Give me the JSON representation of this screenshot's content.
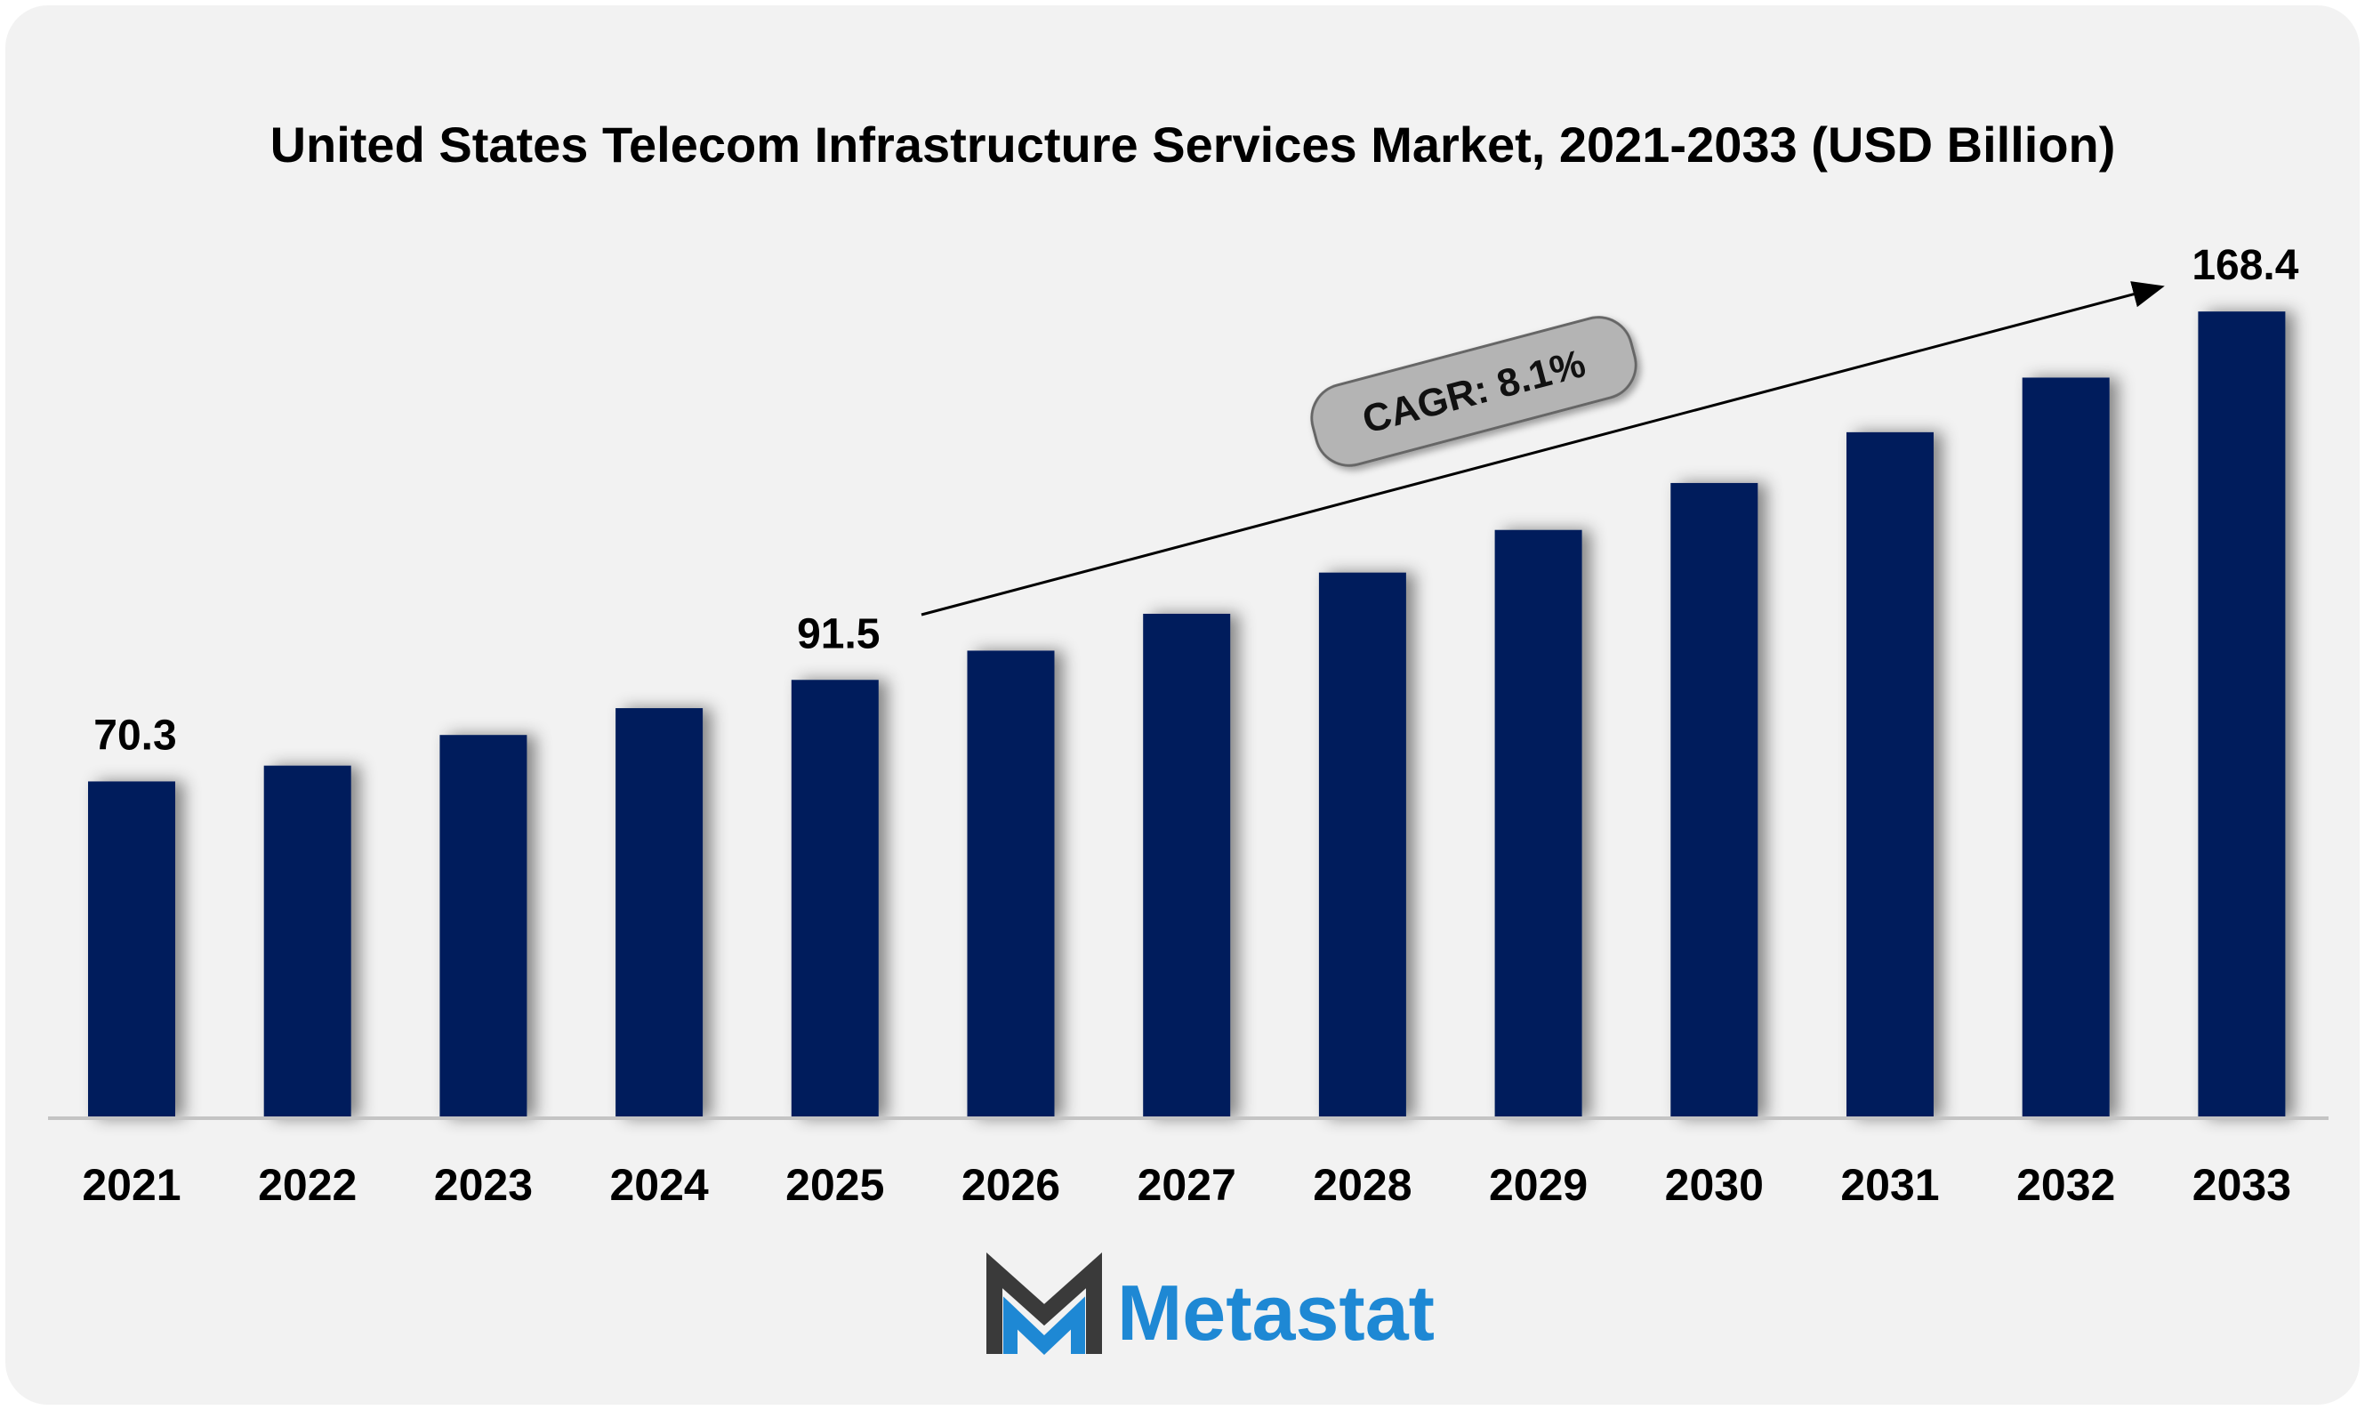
{
  "chart_data": {
    "type": "bar",
    "title": "United States Telecom Infrastructure Services Market, 2021-2033 (USD Billion)",
    "categories": [
      "2021",
      "2022",
      "2023",
      "2024",
      "2025",
      "2026",
      "2027",
      "2028",
      "2029",
      "2030",
      "2031",
      "2032",
      "2033"
    ],
    "values": [
      70.3,
      73.6,
      80.0,
      85.6,
      91.5,
      97.6,
      105.3,
      113.9,
      122.8,
      132.6,
      143.2,
      154.6,
      168.4
    ],
    "data_labels": [
      {
        "index": 0,
        "text": "70.3"
      },
      {
        "index": 4,
        "text": "91.5"
      },
      {
        "index": 12,
        "text": "168.4"
      }
    ],
    "annotation": "CAGR: 8.1%",
    "ylim": [
      0,
      170
    ],
    "grid": false,
    "bar_color": "#001f5b"
  },
  "brand": {
    "name": "Metastat",
    "text_color": "#1e88d4",
    "mark_dark": "#3a3a3a",
    "mark_blue": "#1e88d4"
  }
}
